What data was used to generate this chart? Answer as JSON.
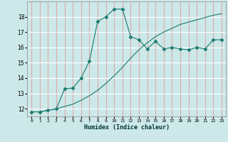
{
  "xlabel": "Humidex (Indice chaleur)",
  "bg_color": "#cce8e8",
  "grid_color": "#ffffff",
  "line_color": "#1a7a6e",
  "xlim": [
    -0.5,
    23.5
  ],
  "ylim": [
    11.5,
    19.0
  ],
  "xticks": [
    0,
    1,
    2,
    3,
    4,
    5,
    6,
    7,
    8,
    9,
    10,
    11,
    12,
    13,
    14,
    15,
    16,
    17,
    18,
    19,
    20,
    21,
    22,
    23
  ],
  "yticks": [
    12,
    13,
    14,
    15,
    16,
    17,
    18
  ],
  "series1_x": [
    0,
    1,
    2,
    3,
    4,
    5,
    6,
    7,
    8,
    9,
    10,
    11,
    12,
    13,
    14,
    15,
    16,
    17,
    18,
    19,
    20,
    21,
    22,
    23
  ],
  "series1_y": [
    11.8,
    11.8,
    11.9,
    12.0,
    12.15,
    12.3,
    12.55,
    12.85,
    13.2,
    13.65,
    14.15,
    14.7,
    15.3,
    15.85,
    16.3,
    16.7,
    17.0,
    17.25,
    17.5,
    17.65,
    17.8,
    17.95,
    18.1,
    18.2
  ],
  "series2_x": [
    0,
    1,
    2,
    3,
    4,
    5,
    6,
    7,
    8,
    9,
    10,
    11,
    12,
    13,
    14,
    15,
    16,
    17,
    18,
    19,
    20,
    21,
    22,
    23
  ],
  "series2_y": [
    11.8,
    11.8,
    11.9,
    12.0,
    13.3,
    13.35,
    14.0,
    15.1,
    17.7,
    18.0,
    18.5,
    18.5,
    16.7,
    16.5,
    15.9,
    16.4,
    15.9,
    16.0,
    15.9,
    15.85,
    16.0,
    15.9,
    16.5,
    16.5
  ],
  "marker": "D",
  "marker_size": 2.5,
  "linewidth": 0.8
}
